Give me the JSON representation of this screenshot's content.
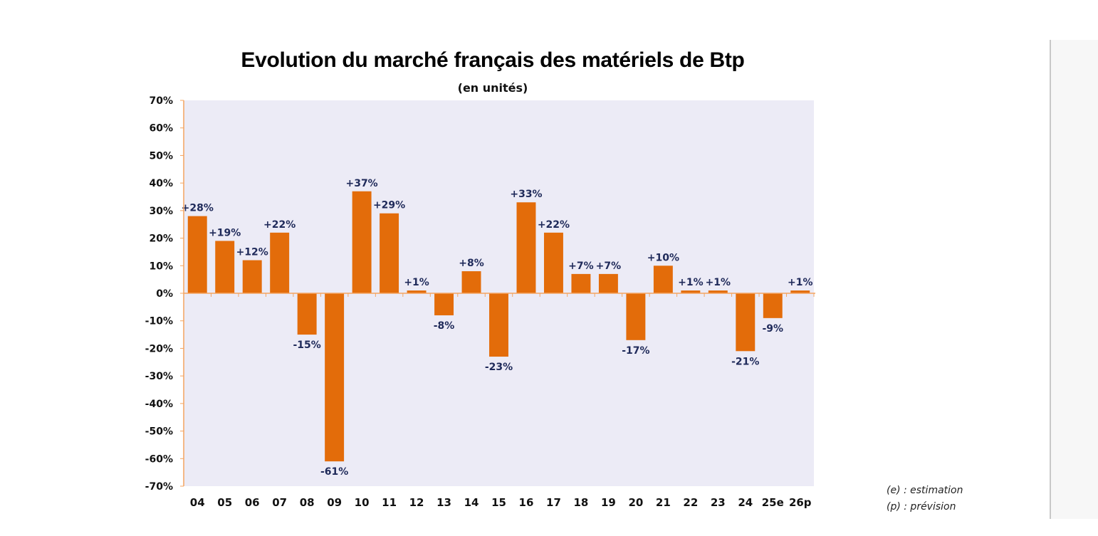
{
  "chart_data": {
    "type": "bar",
    "title": "Evolution du marché français des matériels de Btp",
    "subtitle": "(en unités)",
    "xlabel": "",
    "ylabel": "",
    "ylim": [
      -70,
      70
    ],
    "yticks": [
      70,
      60,
      50,
      40,
      30,
      20,
      10,
      0,
      -10,
      -20,
      -30,
      -40,
      -50,
      -60,
      -70
    ],
    "ytick_labels": [
      "70%",
      "60%",
      "50%",
      "40%",
      "30%",
      "20%",
      "10%",
      "0%",
      "-10%",
      "-20%",
      "-30%",
      "-40%",
      "-50%",
      "-60%",
      "-70%"
    ],
    "categories": [
      "04",
      "05",
      "06",
      "07",
      "08",
      "09",
      "10",
      "11",
      "12",
      "13",
      "14",
      "15",
      "16",
      "17",
      "18",
      "19",
      "20",
      "21",
      "22",
      "23",
      "24",
      "25e",
      "26p"
    ],
    "values": [
      28,
      19,
      12,
      22,
      -15,
      -61,
      37,
      29,
      1,
      -8,
      8,
      -23,
      33,
      22,
      7,
      7,
      -17,
      10,
      1,
      1,
      -21,
      -9,
      1
    ],
    "data_labels": [
      "+28%",
      "+19%",
      "+12%",
      "+22%",
      "-15%",
      "-61%",
      "+37%",
      "+29%",
      "+1%",
      "-8%",
      "+8%",
      "-23%",
      "+33%",
      "+22%",
      "+7%",
      "+7%",
      "-17%",
      "+10%",
      "+1%",
      "+1%",
      "-21%",
      "-9%",
      "+1%"
    ],
    "grid": false,
    "legend": "none",
    "colors": {
      "bar": "#e36c0a",
      "plot_background": "#ecebf6",
      "axis": "#f4a460",
      "data_label": "#1f2a5a"
    }
  },
  "footnotes": {
    "estimation": "(e) : estimation",
    "prevision": "(p) : prévision"
  }
}
